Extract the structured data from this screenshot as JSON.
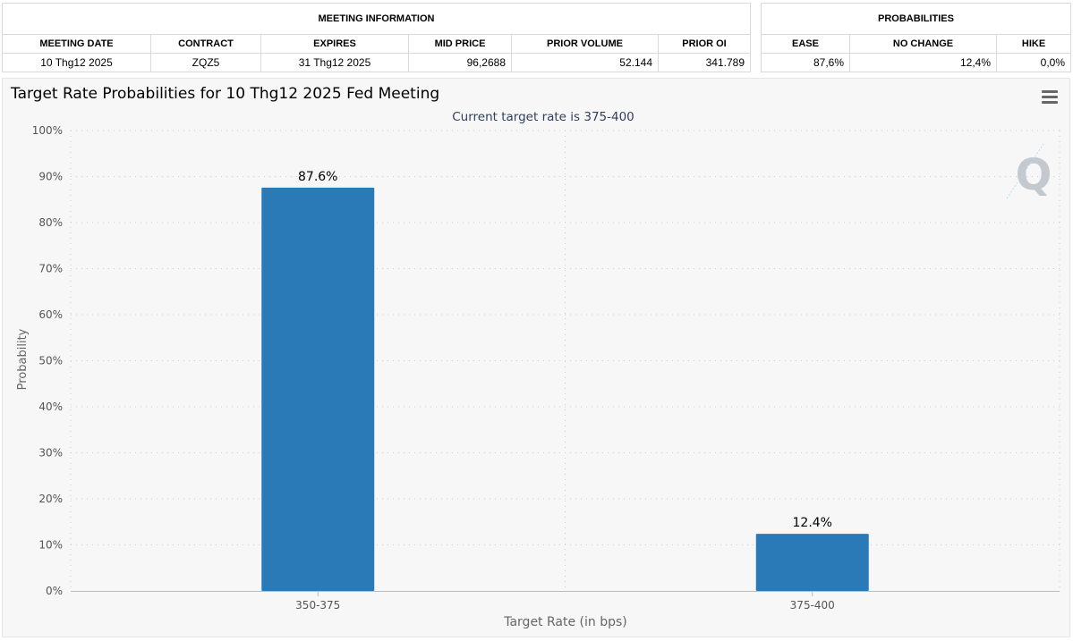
{
  "meeting_info": {
    "title": "MEETING INFORMATION",
    "columns": [
      "MEETING DATE",
      "CONTRACT",
      "EXPIRES",
      "MID PRICE",
      "PRIOR VOLUME",
      "PRIOR OI"
    ],
    "row": [
      "10 Thg12 2025",
      "ZQZ5",
      "31 Thg12 2025",
      "96,2688",
      "52.144",
      "341.789"
    ]
  },
  "probabilities": {
    "title": "PROBABILITIES",
    "columns": [
      "EASE",
      "NO CHANGE",
      "HIKE"
    ],
    "row": [
      "87,6%",
      "12,4%",
      "0,0%"
    ]
  },
  "menu_icon": "hamburger-menu-icon",
  "watermark_icon": "q-logo-icon",
  "colors": {
    "bar": "#2a7ab8",
    "grid": "#cccccc",
    "subtitle": "#2f3f5c",
    "background": "#f7f7f7"
  },
  "chart_data": {
    "type": "bar",
    "title": "Target Rate Probabilities for 10 Thg12 2025 Fed Meeting",
    "subtitle": "Current target rate is 375-400",
    "xlabel": "Target Rate (in bps)",
    "ylabel": "Probability",
    "categories": [
      "350-375",
      "375-400"
    ],
    "values": [
      87.6,
      12.4
    ],
    "data_labels": [
      "87.6%",
      "12.4%"
    ],
    "ylim": [
      0,
      100
    ],
    "yticks": [
      "0%",
      "10%",
      "20%",
      "30%",
      "40%",
      "50%",
      "60%",
      "70%",
      "80%",
      "90%",
      "100%"
    ],
    "grid": true,
    "legend": "none"
  }
}
